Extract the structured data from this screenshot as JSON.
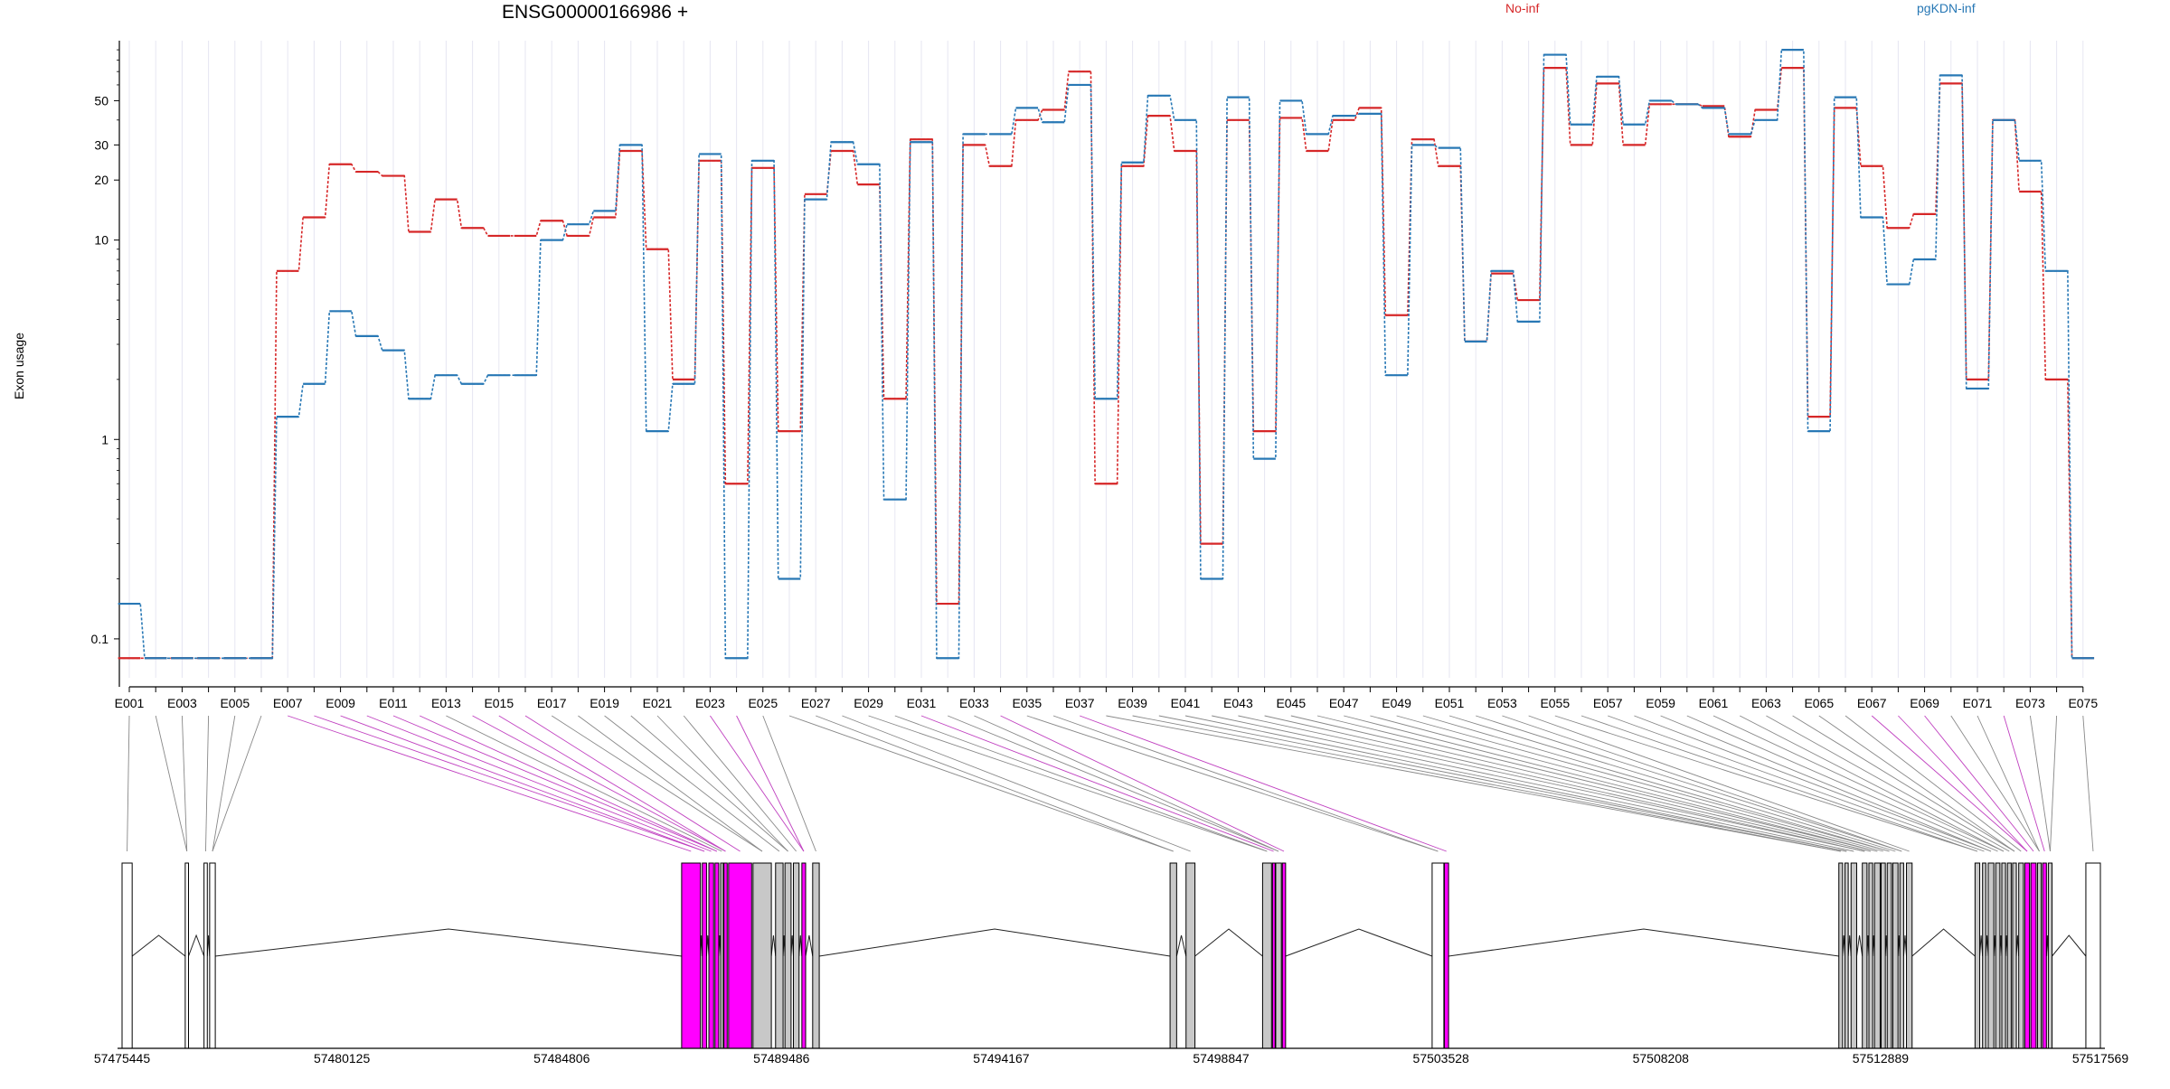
{
  "chart_data": {
    "type": "line",
    "title": "ENSG00000166986 +",
    "ylabel": "Exon usage",
    "xlabel": "",
    "y_scale": "log",
    "y_tick_labels": [
      "0.1",
      "1",
      "10",
      "20",
      "30",
      "50"
    ],
    "y_tick_values": [
      0.1,
      1,
      10,
      20,
      30,
      50
    ],
    "x_tick_labels": [
      "E001",
      "E003",
      "E005",
      "E007",
      "E009",
      "E011",
      "E013",
      "E015",
      "E017",
      "E019",
      "E021",
      "E023",
      "E025",
      "E027",
      "E029",
      "E031",
      "E033",
      "E035",
      "E037",
      "E039",
      "E041",
      "E043",
      "E045",
      "E047",
      "E049",
      "E051",
      "E053",
      "E055",
      "E057",
      "E059",
      "E061",
      "E063",
      "E065",
      "E067",
      "E069",
      "E071",
      "E073",
      "E075"
    ],
    "categories": [
      "E001",
      "E002",
      "E003",
      "E004",
      "E005",
      "E006",
      "E007",
      "E008",
      "E009",
      "E010",
      "E011",
      "E012",
      "E013",
      "E014",
      "E015",
      "E016",
      "E017",
      "E018",
      "E019",
      "E020",
      "E021",
      "E022",
      "E023",
      "E024",
      "E025",
      "E026",
      "E027",
      "E028",
      "E029",
      "E030",
      "E031",
      "E032",
      "E033",
      "E034",
      "E035",
      "E036",
      "E037",
      "E038",
      "E039",
      "E040",
      "E041",
      "E042",
      "E043",
      "E044",
      "E045",
      "E046",
      "E047",
      "E048",
      "E049",
      "E050",
      "E051",
      "E052",
      "E053",
      "E054",
      "E055",
      "E056",
      "E057",
      "E058",
      "E059",
      "E060",
      "E061",
      "E062",
      "E063",
      "E064",
      "E065",
      "E066",
      "E067",
      "E068",
      "E069",
      "E070",
      "E071",
      "E072",
      "E073",
      "E074",
      "E075"
    ],
    "legend_placement": "top",
    "series": [
      {
        "name": "No-inf",
        "color": "#d62728",
        "values": [
          0.08,
          0.08,
          0.08,
          0.08,
          0.08,
          0.08,
          7,
          13,
          24,
          22,
          21,
          11,
          16,
          11.5,
          10.5,
          10.5,
          12.5,
          10.5,
          13,
          28,
          9,
          2,
          25,
          0.6,
          23,
          1.1,
          17,
          28,
          19,
          1.6,
          32,
          0.15,
          30,
          23.5,
          40,
          45,
          70,
          0.6,
          23.5,
          42,
          28,
          0.3,
          40,
          1.1,
          41,
          28,
          40,
          46,
          4.2,
          32,
          23.5,
          3.1,
          6.8,
          5,
          73,
          30,
          61,
          30,
          48,
          48,
          47,
          33,
          45,
          73,
          1.3,
          46,
          23.5,
          11.5,
          13.5,
          61,
          2,
          40,
          17.5,
          2,
          0.08
        ],
        "marker_values": [
          0.08,
          0.08,
          0.08,
          0.08,
          0.08,
          0.08,
          7,
          13,
          24,
          22,
          21,
          11,
          16,
          11.5,
          10.5,
          10.5,
          12.5,
          10.5,
          13,
          28,
          9,
          2,
          25,
          0.6,
          23,
          1.1,
          17,
          28,
          19,
          1.6,
          32,
          0.15,
          30,
          23.5,
          40,
          45,
          70,
          0.6,
          23.5,
          42,
          28,
          0.3,
          40,
          1.1,
          41,
          28,
          40,
          46,
          4.2,
          32,
          23.5,
          3.1,
          6.8,
          5,
          73,
          30,
          61,
          30,
          48,
          48,
          47,
          33,
          45,
          73,
          1.3,
          46,
          23.5,
          11.5,
          13.5,
          61,
          2,
          40,
          17.5,
          2,
          0.08
        ]
      },
      {
        "name": "pgKDN-inf",
        "color": "#2878b5",
        "values": [
          0.15,
          0.08,
          0.08,
          0.08,
          0.08,
          0.08,
          1.3,
          1.9,
          4.4,
          3.3,
          2.8,
          1.6,
          2.1,
          1.9,
          2.1,
          2.1,
          10,
          12,
          14,
          30,
          1.1,
          1.9,
          27,
          0.08,
          25,
          0.2,
          16,
          31,
          24,
          0.5,
          31,
          0.08,
          34,
          34,
          46,
          39,
          60,
          1.6,
          24.5,
          53,
          40,
          0.2,
          52,
          0.8,
          50,
          34,
          42,
          43,
          2.1,
          30,
          29,
          3.1,
          7,
          3.9,
          85,
          38,
          66,
          38,
          50,
          48,
          46,
          34,
          40,
          90,
          1.1,
          52,
          13,
          6,
          8,
          67,
          1.8,
          40,
          25,
          7,
          0.08
        ],
        "marker_values": [
          0.15,
          0.08,
          0.08,
          0.08,
          0.08,
          0.08,
          1.3,
          1.9,
          4.4,
          3.3,
          2.8,
          1.6,
          2.1,
          1.9,
          2.1,
          2.1,
          10,
          12,
          14,
          30,
          1.1,
          1.9,
          27,
          0.08,
          25,
          0.2,
          16,
          31,
          24,
          0.5,
          31,
          0.08,
          34,
          34,
          46,
          39,
          60,
          1.6,
          24.5,
          53,
          40,
          0.2,
          52,
          0.8,
          50,
          34,
          42,
          43,
          2.1,
          30,
          29,
          3.1,
          7,
          3.9,
          85,
          38,
          66,
          38,
          50,
          48,
          46,
          34,
          40,
          90,
          1.1,
          52,
          13,
          6,
          8,
          67,
          1.8,
          40,
          25,
          7,
          0.08
        ]
      }
    ],
    "gene_model": {
      "coordinate_tick_labels": [
        "57475445",
        "57480125",
        "57484806",
        "57489486",
        "57494167",
        "57498847",
        "57503528",
        "57508208",
        "57512889",
        "57517569"
      ],
      "coordinate_tick_values": [
        57475445,
        57480125,
        57484806,
        57489486,
        57494167,
        57498847,
        57503528,
        57508208,
        57512889,
        57517569
      ],
      "exon_fill_default": "#c8c8c8",
      "exon_fill_highlight": "#ff00ff",
      "exon_fill_blank": "#ffffff",
      "exons": [
        {
          "start": 57475445,
          "end": 57475660,
          "fill": "white"
        },
        {
          "start": 57476790,
          "end": 57476860,
          "fill": "white"
        },
        {
          "start": 57477190,
          "end": 57477260,
          "fill": "white"
        },
        {
          "start": 57477310,
          "end": 57477430,
          "fill": "white"
        },
        {
          "start": 57487360,
          "end": 57487760,
          "fill": "magenta"
        },
        {
          "start": 57487800,
          "end": 57487890,
          "fill": "magenta"
        },
        {
          "start": 57487940,
          "end": 57488040,
          "fill": "magenta"
        },
        {
          "start": 57488070,
          "end": 57488150,
          "fill": "magenta"
        },
        {
          "start": 57488190,
          "end": 57488240,
          "fill": "gray"
        },
        {
          "start": 57488260,
          "end": 57488330,
          "fill": "magenta"
        },
        {
          "start": 57488360,
          "end": 57488850,
          "fill": "magenta"
        },
        {
          "start": 57488880,
          "end": 57489270,
          "fill": "gray"
        },
        {
          "start": 57489360,
          "end": 57489520,
          "fill": "gray"
        },
        {
          "start": 57489560,
          "end": 57489690,
          "fill": "gray"
        },
        {
          "start": 57489740,
          "end": 57489860,
          "fill": "gray"
        },
        {
          "start": 57489920,
          "end": 57490000,
          "fill": "magenta"
        },
        {
          "start": 57490150,
          "end": 57490290,
          "fill": "gray"
        },
        {
          "start": 57497760,
          "end": 57497900,
          "fill": "gray"
        },
        {
          "start": 57498100,
          "end": 57498290,
          "fill": "gray"
        },
        {
          "start": 57499730,
          "end": 57499920,
          "fill": "gray"
        },
        {
          "start": 57499940,
          "end": 57499990,
          "fill": "magenta"
        },
        {
          "start": 57500010,
          "end": 57500130,
          "fill": "gray"
        },
        {
          "start": 57500150,
          "end": 57500220,
          "fill": "magenta"
        },
        {
          "start": 57503340,
          "end": 57503590,
          "fill": "white"
        },
        {
          "start": 57503600,
          "end": 57503690,
          "fill": "magenta"
        },
        {
          "start": 57512000,
          "end": 57512080,
          "fill": "gray"
        },
        {
          "start": 57512130,
          "end": 57512200,
          "fill": "gray"
        },
        {
          "start": 57512260,
          "end": 57512380,
          "fill": "gray"
        },
        {
          "start": 57512500,
          "end": 57512600,
          "fill": "gray"
        },
        {
          "start": 57512640,
          "end": 57512720,
          "fill": "gray"
        },
        {
          "start": 57512760,
          "end": 57512880,
          "fill": "gray"
        },
        {
          "start": 57512900,
          "end": 57512990,
          "fill": "gray"
        },
        {
          "start": 57513030,
          "end": 57513120,
          "fill": "gray"
        },
        {
          "start": 57513150,
          "end": 57513260,
          "fill": "gray"
        },
        {
          "start": 57513300,
          "end": 57513380,
          "fill": "gray"
        },
        {
          "start": 57513440,
          "end": 57513560,
          "fill": "gray"
        },
        {
          "start": 57514900,
          "end": 57515000,
          "fill": "gray"
        },
        {
          "start": 57515060,
          "end": 57515130,
          "fill": "gray"
        },
        {
          "start": 57515180,
          "end": 57515300,
          "fill": "gray"
        },
        {
          "start": 57515340,
          "end": 57515430,
          "fill": "gray"
        },
        {
          "start": 57515470,
          "end": 57515550,
          "fill": "gray"
        },
        {
          "start": 57515590,
          "end": 57515670,
          "fill": "gray"
        },
        {
          "start": 57515700,
          "end": 57515780,
          "fill": "gray"
        },
        {
          "start": 57515830,
          "end": 57515930,
          "fill": "gray"
        },
        {
          "start": 57515960,
          "end": 57516060,
          "fill": "magenta"
        },
        {
          "start": 57516090,
          "end": 57516200,
          "fill": "magenta"
        },
        {
          "start": 57516230,
          "end": 57516310,
          "fill": "gray"
        },
        {
          "start": 57516340,
          "end": 57516420,
          "fill": "magenta"
        },
        {
          "start": 57516460,
          "end": 57516540,
          "fill": "gray"
        },
        {
          "start": 57517260,
          "end": 57517569,
          "fill": "white"
        }
      ]
    }
  }
}
